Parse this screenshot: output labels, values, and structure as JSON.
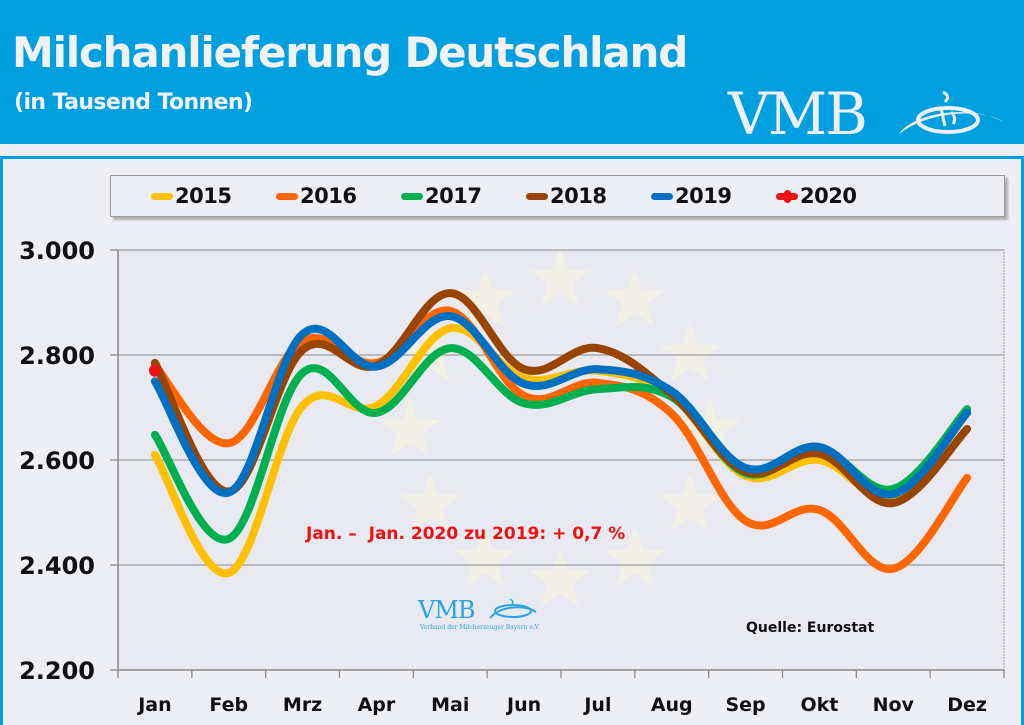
{
  "header": {
    "title": "Milchanlieferung Deutschland",
    "subtitle": "(in Tausend Tonnen)",
    "logo_text": "VMB",
    "header_color": "#00a0e0"
  },
  "watermark": {
    "text": "VMB",
    "subtext": "Verband der Milcherzeuger Bayern e.V."
  },
  "annotation": "Jan. –  Jan. 2020 zu 2019: + 0,7 %",
  "source": "Quelle: Eurostat",
  "chart_data": {
    "type": "line",
    "title": "Milchanlieferung Deutschland",
    "subtitle": "(in Tausend Tonnen)",
    "xlabel": "",
    "ylabel": "",
    "categories": [
      "Jan",
      "Feb",
      "Mrz",
      "Apr",
      "Mai",
      "Jun",
      "Jul",
      "Aug",
      "Sep",
      "Okt",
      "Nov",
      "Dez"
    ],
    "ylim": [
      2200,
      3000
    ],
    "yticks": [
      2200,
      2400,
      2600,
      2800,
      3000
    ],
    "ytick_labels": [
      "2.200",
      "2.400",
      "2.600",
      "2.800",
      "3.000"
    ],
    "grid": true,
    "legend_position": "top",
    "smooth": true,
    "series": [
      {
        "name": "2015",
        "color": "#ffc000",
        "values": [
          2610,
          2385,
          2703,
          2703,
          2851,
          2756,
          2770,
          2722,
          2570,
          2600,
          2530,
          2690
        ]
      },
      {
        "name": "2016",
        "color": "#ff6600",
        "values": [
          2780,
          2632,
          2827,
          2785,
          2884,
          2722,
          2747,
          2688,
          2484,
          2505,
          2393,
          2566
        ]
      },
      {
        "name": "2017",
        "color": "#00b050",
        "values": [
          2648,
          2450,
          2766,
          2690,
          2813,
          2708,
          2735,
          2720,
          2575,
          2620,
          2545,
          2697
        ]
      },
      {
        "name": "2018",
        "color": "#994400",
        "values": [
          2785,
          2540,
          2810,
          2780,
          2918,
          2773,
          2813,
          2725,
          2578,
          2612,
          2518,
          2659
        ]
      },
      {
        "name": "2019",
        "color": "#0070c0",
        "values": [
          2750,
          2538,
          2840,
          2778,
          2874,
          2745,
          2773,
          2731,
          2585,
          2625,
          2535,
          2690
        ]
      },
      {
        "name": "2020",
        "color": "#ee1111",
        "marker": "circle",
        "values": [
          2770,
          null,
          null,
          null,
          null,
          null,
          null,
          null,
          null,
          null,
          null,
          null
        ]
      }
    ],
    "annotations": [
      "Jan. –  Jan. 2020 zu 2019: + 0,7 %",
      "Quelle: Eurostat"
    ]
  }
}
